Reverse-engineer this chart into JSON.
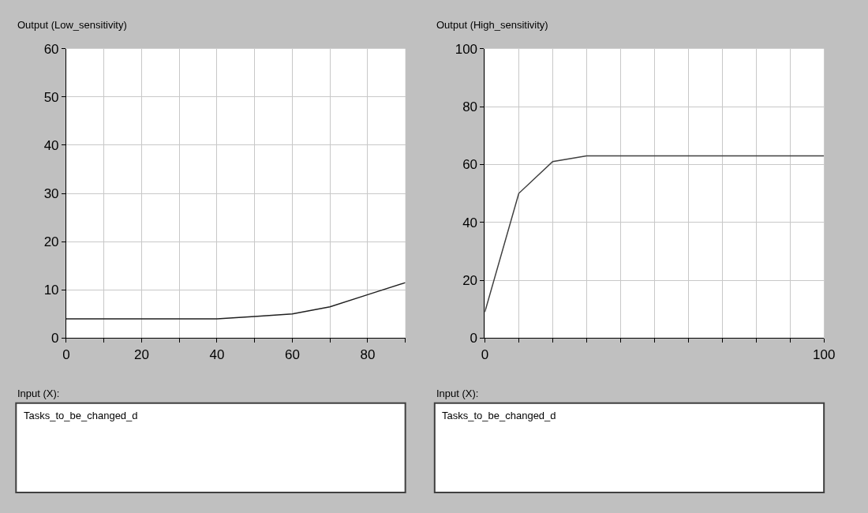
{
  "chart_data": [
    {
      "type": "line",
      "title": "Output (Low_sensitivity)",
      "xlabel": "Input (X):",
      "annotations": [
        "Tasks_to_be_changed_d"
      ],
      "x": [
        0,
        10,
        20,
        30,
        40,
        50,
        60,
        70,
        80,
        90
      ],
      "series": [
        {
          "color": "#202020",
          "values": [
            4,
            4,
            4,
            4,
            4,
            4.5,
            5,
            6.5,
            9,
            11.5
          ]
        }
      ],
      "xlim": [
        0,
        90
      ],
      "xticks": [
        0,
        {
          "value": 10,
          "label": null
        },
        20,
        {
          "value": 30,
          "label": null
        },
        40,
        {
          "value": 50,
          "label": null
        },
        60,
        {
          "value": 70,
          "label": null
        },
        80,
        {
          "value": 90,
          "label": null
        }
      ],
      "ylim": [
        0,
        60
      ],
      "yticks": [
        0,
        10,
        20,
        30,
        40,
        50,
        60
      ],
      "grid": true,
      "marker": "none",
      "line_style": "solid"
    },
    {
      "type": "line",
      "title": "Output (High_sensitivity)",
      "xlabel": "Input (X):",
      "annotations": [
        "Tasks_to_be_changed_d"
      ],
      "x": [
        0,
        10,
        20,
        30,
        40,
        50,
        60,
        70,
        80,
        90,
        100
      ],
      "series": [
        {
          "color": "#404040",
          "values": [
            9,
            50,
            61,
            63,
            63,
            63,
            63,
            63,
            63,
            63,
            63
          ]
        }
      ],
      "xlim": [
        0,
        100
      ],
      "xticks": [
        0,
        {
          "value": 10,
          "label": null
        },
        {
          "value": 20,
          "label": null
        },
        {
          "value": 30,
          "label": null
        },
        {
          "value": 40,
          "label": null
        },
        {
          "value": 50,
          "label": null
        },
        {
          "value": 60,
          "label": null
        },
        {
          "value": 70,
          "label": null
        },
        {
          "value": 80,
          "label": null
        },
        {
          "value": 90,
          "label": null
        },
        100
      ],
      "ylim": [
        0,
        100
      ],
      "yticks": [
        0,
        20,
        40,
        60,
        80,
        100
      ],
      "grid": true,
      "marker": "none",
      "line_style": "solid"
    }
  ]
}
